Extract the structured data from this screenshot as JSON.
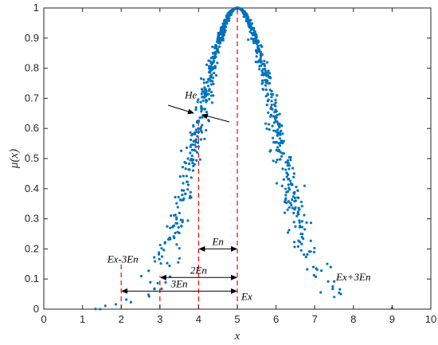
{
  "chart_data": {
    "type": "scatter",
    "title": "",
    "xlabel": "x",
    "ylabel": "μ(x)",
    "xlim": [
      0,
      10
    ],
    "ylim": [
      0,
      1
    ],
    "xticks": [
      0,
      1,
      2,
      3,
      4,
      5,
      6,
      7,
      8,
      9,
      10
    ],
    "yticks": [
      0,
      0.1,
      0.2,
      0.3,
      0.4,
      0.5,
      0.6,
      0.7,
      0.8,
      0.9,
      1
    ],
    "ytick_labels": [
      "0",
      "0.1",
      "0.2",
      "0.3",
      "0.4",
      "0.5",
      "0.6",
      "0.7",
      "0.8",
      "0.9",
      "1"
    ],
    "grid": false,
    "cloud_model": {
      "Ex": 5,
      "En": 1,
      "He": 0.1,
      "drops": 1000
    },
    "series": [
      {
        "color": "#0072BD"
      }
    ],
    "reference_lines": [
      {
        "x": 2,
        "y_top": 0.15,
        "label": "Ex-3En",
        "color": "#FF0000"
      },
      {
        "x": 3,
        "y_top": 0.11,
        "label": "",
        "color": "#FF0000"
      },
      {
        "x": 4,
        "y_top": 0.63,
        "label": "",
        "color": "#FF0000"
      },
      {
        "x": 5,
        "y_top": 1.0,
        "label": "Ex",
        "color": "#FF0000"
      }
    ],
    "spans": [
      {
        "from": 4,
        "to": 5,
        "y": 0.2,
        "label": "En"
      },
      {
        "from": 3,
        "to": 5,
        "y": 0.105,
        "label": "2En"
      },
      {
        "from": 2,
        "to": 5,
        "y": 0.06,
        "label": "3En"
      }
    ],
    "annotations": [
      {
        "text": "He",
        "x": 3.8,
        "y": 0.7
      },
      {
        "text": "Ex+3En",
        "x": 8.0,
        "y": 0.095
      }
    ]
  }
}
